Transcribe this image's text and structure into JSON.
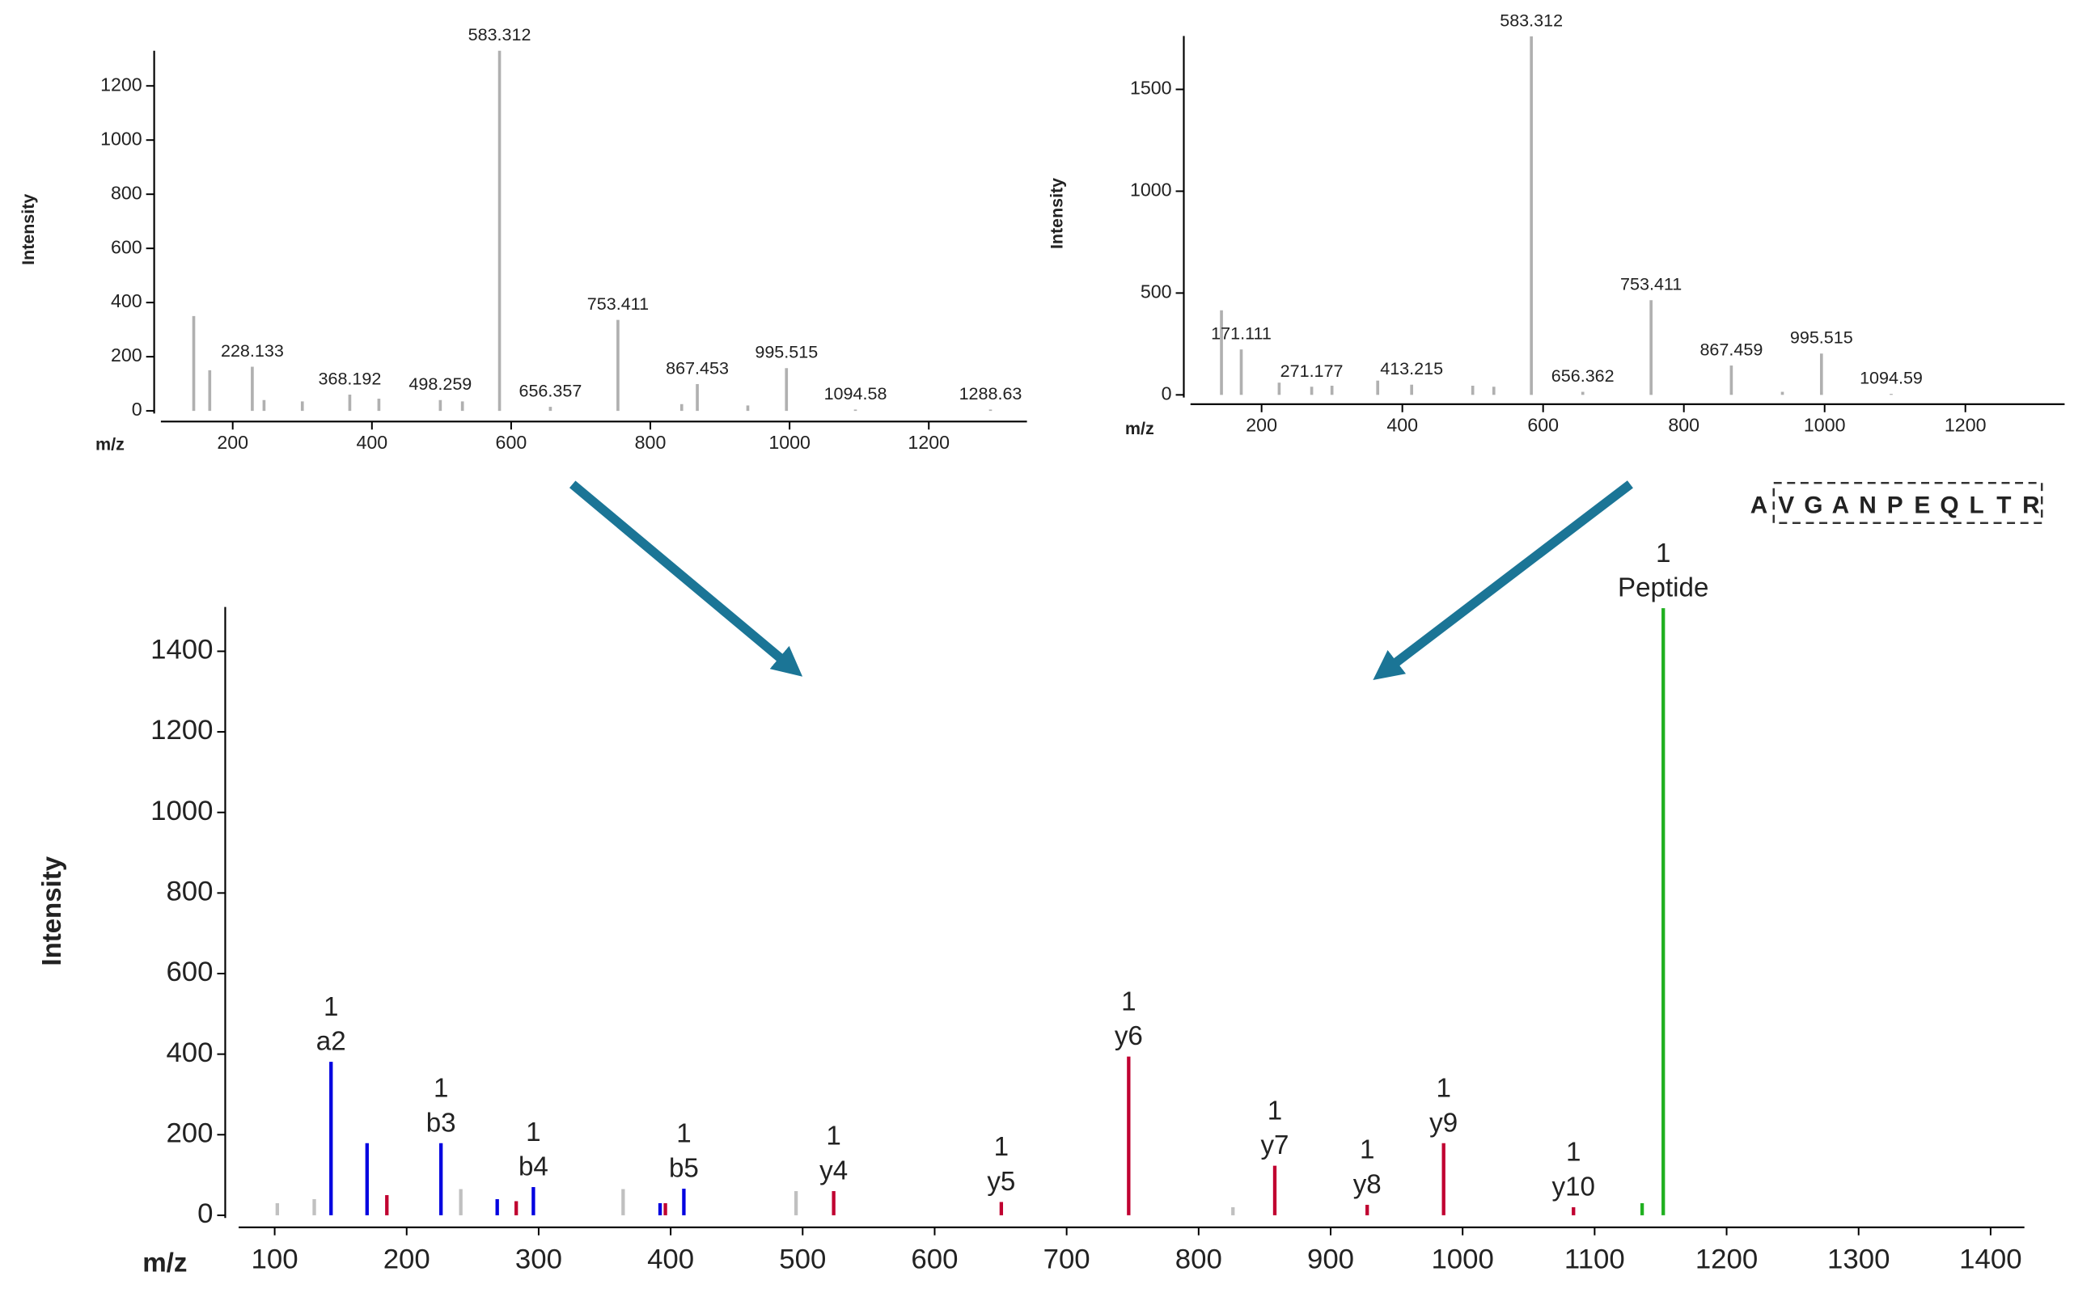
{
  "chart_data": [
    {
      "type": "spectrum",
      "ylabel": "Intensity",
      "xlabel": "m/z",
      "color": "#b0b0b0",
      "xlim": [
        96.8,
        1341
      ],
      "ylim": [
        0,
        1330
      ],
      "xticks": [
        200,
        400,
        600,
        800,
        1000,
        1200
      ],
      "yticks": [
        0,
        200,
        400,
        600,
        800,
        1000,
        1200
      ],
      "grid": false,
      "x": [
        144,
        167,
        228.133,
        245,
        300,
        368.192,
        410,
        498.259,
        530,
        583.312,
        656.357,
        753.411,
        845,
        867.453,
        940,
        995.515,
        1094.58,
        1288.63
      ],
      "values": [
        350,
        150,
        163,
        40,
        35,
        60,
        45,
        40,
        35,
        1330,
        15,
        336,
        25,
        99,
        20,
        158,
        5,
        5
      ],
      "labels": [
        null,
        null,
        "228.133",
        null,
        null,
        "368.192",
        null,
        "498.259",
        null,
        "583.312",
        "656.357",
        "753.411",
        null,
        "867.453",
        null,
        "995.515",
        "1094.58",
        "1288.63"
      ]
    },
    {
      "type": "spectrum",
      "ylabel": "Intensity",
      "xlabel": "m/z",
      "color": "#b0b0b0",
      "xlim": [
        99,
        1341
      ],
      "ylim": [
        0,
        1762
      ],
      "xticks": [
        200,
        400,
        600,
        800,
        1000,
        1200
      ],
      "yticks": [
        0,
        500,
        1000,
        1500
      ],
      "grid": false,
      "x": [
        143,
        171.111,
        225,
        271.177,
        300,
        365,
        413.215,
        500,
        530,
        583.312,
        656.362,
        753.411,
        867.459,
        940,
        995.515,
        1094.59
      ],
      "values": [
        415,
        223,
        60,
        40,
        45,
        70,
        50,
        45,
        40,
        1760,
        15,
        465,
        144,
        15,
        203,
        5
      ],
      "labels": [
        null,
        "171.111",
        null,
        "271.177",
        null,
        null,
        "413.215",
        null,
        null,
        "583.312",
        "656.362",
        "753.411",
        "867.459",
        null,
        "995.515",
        "1094.59"
      ],
      "sequence": [
        "A",
        "V",
        "G",
        "A",
        "N",
        "P",
        "E",
        "Q",
        "L",
        "T",
        "R"
      ]
    },
    {
      "type": "spectrum",
      "ylabel": "Intensity",
      "xlabel": "m/z",
      "xlim": [
        72.7,
        1425.6
      ],
      "ylim": [
        0,
        1510
      ],
      "xticks": [
        100,
        200,
        300,
        400,
        500,
        600,
        700,
        800,
        900,
        1000,
        1100,
        1200,
        1300,
        1400
      ],
      "yticks": [
        0,
        200,
        400,
        600,
        800,
        1000,
        1200,
        1400
      ],
      "grid": false,
      "x": [
        102,
        130,
        142.7,
        170,
        185,
        226,
        241,
        268.6,
        283,
        296,
        364,
        392,
        396,
        410,
        495,
        523.5,
        650.5,
        747,
        826,
        857.7,
        927.7,
        985.6,
        1084,
        1136,
        1152
      ],
      "values": [
        30,
        40,
        381,
        179,
        50,
        179,
        65,
        40,
        35,
        70,
        65,
        30,
        30,
        66,
        60,
        60,
        33,
        394,
        20,
        123,
        26,
        179,
        20,
        30,
        1507
      ],
      "colors": [
        "#c0c0c0",
        "#c0c0c0",
        "#0000e0",
        "#0000e0",
        "#c00030",
        "#0000e0",
        "#c0c0c0",
        "#0000e0",
        "#c00030",
        "#0000e0",
        "#c0c0c0",
        "#0000e0",
        "#c00030",
        "#0000e0",
        "#c0c0c0",
        "#c00030",
        "#c00030",
        "#c00030",
        "#c0c0c0",
        "#c00030",
        "#c00030",
        "#c00030",
        "#c00030",
        "#20b020",
        "#20b020"
      ],
      "labels": [
        null,
        null,
        [
          "1",
          "a2"
        ],
        null,
        null,
        [
          "1",
          "b3"
        ],
        null,
        null,
        null,
        [
          "1",
          "b4"
        ],
        null,
        null,
        null,
        [
          "1",
          "b5"
        ],
        null,
        [
          "1",
          "y4"
        ],
        [
          "1",
          "y5"
        ],
        [
          "1",
          "y6"
        ],
        null,
        [
          "1",
          "y7"
        ],
        [
          "1",
          "y8"
        ],
        [
          "1",
          "y9"
        ],
        [
          "1",
          "y10"
        ],
        null,
        [
          "1",
          "Peptide"
        ]
      ]
    }
  ]
}
